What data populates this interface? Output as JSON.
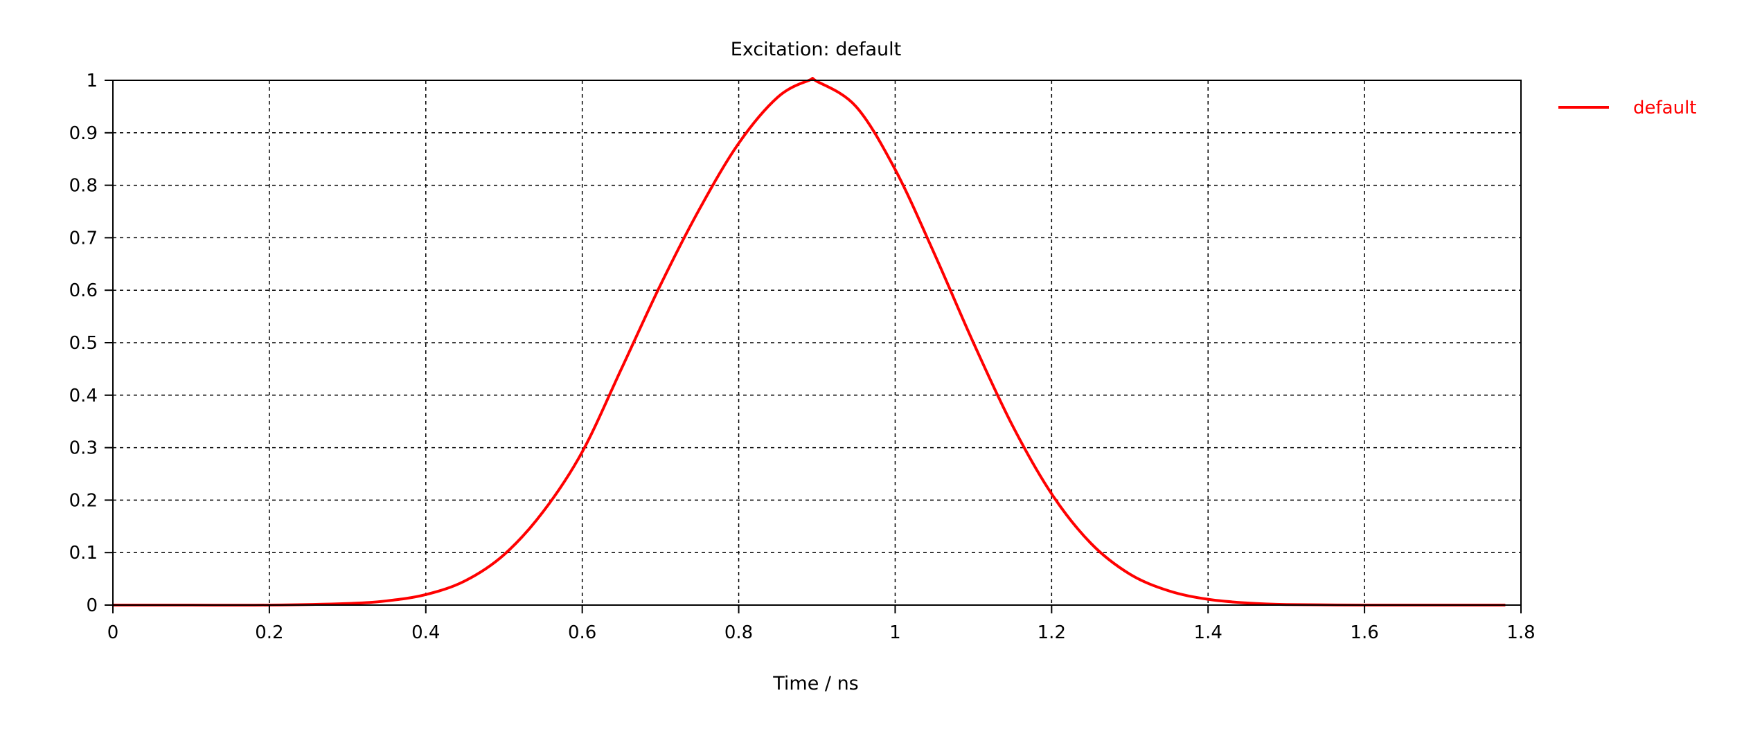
{
  "chart_data": {
    "type": "line",
    "title": "Excitation: default",
    "xlabel": "Time / ns",
    "ylabel": "",
    "xlim": [
      0,
      1.8
    ],
    "ylim": [
      0,
      1
    ],
    "x_ticks": [
      "0",
      "0.2",
      "0.4",
      "0.6",
      "0.8",
      "1",
      "1.2",
      "1.4",
      "1.6",
      "1.8"
    ],
    "y_ticks": [
      "0",
      "0.1",
      "0.2",
      "0.3",
      "0.4",
      "0.5",
      "0.6",
      "0.7",
      "0.8",
      "0.9",
      "1"
    ],
    "grid": true,
    "legend_position": "right",
    "series": [
      {
        "name": "default",
        "color": "#ff0000",
        "x": [
          0,
          0.1,
          0.2,
          0.3,
          0.35,
          0.4,
          0.45,
          0.5,
          0.55,
          0.6,
          0.65,
          0.7,
          0.75,
          0.8,
          0.85,
          0.89,
          0.9,
          0.95,
          1.0,
          1.05,
          1.1,
          1.15,
          1.2,
          1.25,
          1.3,
          1.35,
          1.4,
          1.45,
          1.5,
          1.6,
          1.7,
          1.78
        ],
        "y": [
          0,
          0,
          0,
          0.003,
          0.008,
          0.02,
          0.046,
          0.096,
          0.178,
          0.292,
          0.45,
          0.61,
          0.755,
          0.88,
          0.968,
          1.0,
          0.998,
          0.95,
          0.83,
          0.67,
          0.5,
          0.342,
          0.212,
          0.118,
          0.059,
          0.027,
          0.011,
          0.004,
          0.001,
          0,
          0,
          0
        ]
      }
    ]
  }
}
